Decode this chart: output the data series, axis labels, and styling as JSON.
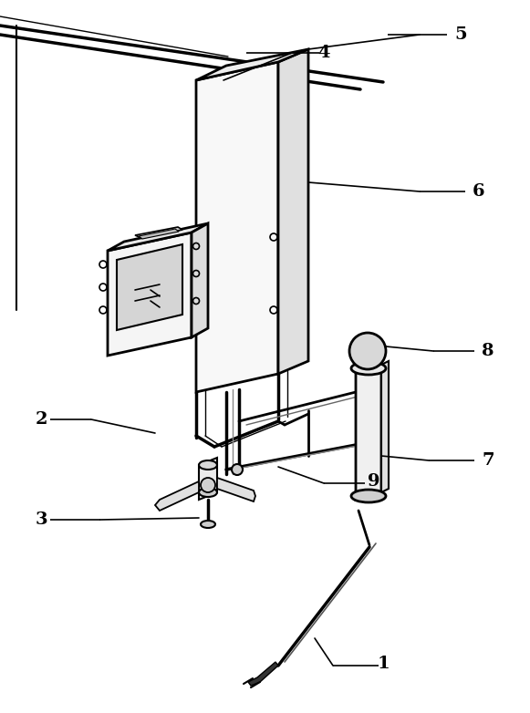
{
  "bg_color": "#ffffff",
  "line_color": "#000000",
  "lw": 1.5,
  "fig_width": 5.81,
  "fig_height": 7.82,
  "dpi": 100
}
